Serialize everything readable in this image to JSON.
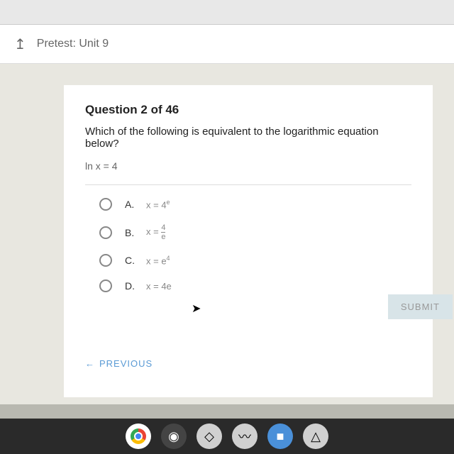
{
  "header": {
    "title": "Pretest: Unit 9"
  },
  "question": {
    "number": "Question 2 of 46",
    "text": "Which of the following is equivalent to the logarithmic equation below?",
    "equation": "ln x = 4"
  },
  "options": {
    "a": {
      "letter": "A.",
      "main": "x = 4",
      "sup": "e"
    },
    "b": {
      "letter": "B.",
      "prefix": "x = ",
      "num": "4",
      "den": "e"
    },
    "c": {
      "letter": "C.",
      "main": "x = e",
      "sup": "4"
    },
    "d": {
      "letter": "D.",
      "text": "x = 4e"
    }
  },
  "buttons": {
    "submit": "SUBMIT",
    "previous": "PREVIOUS"
  }
}
